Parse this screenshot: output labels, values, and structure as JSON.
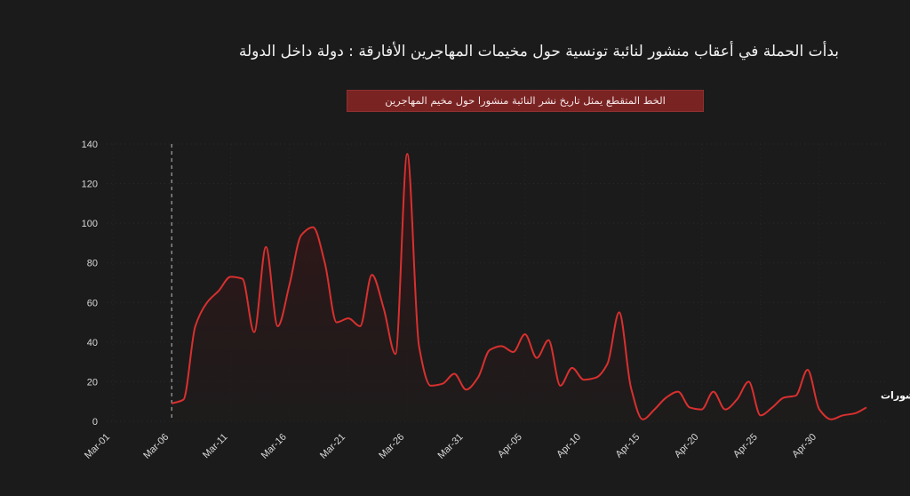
{
  "chart_data": {
    "type": "area",
    "title": "بدأت الحملة في أعقاب منشور لنائبة تونسية حول مخيمات المهاجرين الأفارقة : دولة داخل الدولة",
    "annotation_banner": "الخط المتقطع يمثل تاريخ نشر النائبة منشورا حول مخيم المهاجرين",
    "xlabel": "",
    "ylabel": "",
    "ylim": [
      0,
      140
    ],
    "y_ticks": [
      0,
      20,
      40,
      60,
      80,
      100,
      120,
      140
    ],
    "x_ticks": [
      "Mar-01",
      "Mar-06",
      "Mar-11",
      "Mar-16",
      "Mar-21",
      "Mar-26",
      "Mar-31",
      "Apr-05",
      "Apr-10",
      "Apr-15",
      "Apr-20",
      "Apr-25",
      "Apr-30"
    ],
    "x_start": "Mar-01",
    "reference_line": {
      "date": "Mar-06",
      "style": "dashed"
    },
    "grid": true,
    "colors": {
      "line": "#d8302f",
      "fill": "#5a1214",
      "background": "#1b1b1b",
      "banner": "#7a2323"
    },
    "series": [
      {
        "name": "عدد المنشورات",
        "dates": [
          "Mar-06",
          "Mar-07",
          "Mar-08",
          "Mar-09",
          "Mar-10",
          "Mar-11",
          "Mar-12",
          "Mar-13",
          "Mar-14",
          "Mar-15",
          "Mar-16",
          "Mar-17",
          "Mar-18",
          "Mar-19",
          "Mar-20",
          "Mar-21",
          "Mar-22",
          "Mar-23",
          "Mar-24",
          "Mar-25",
          "Mar-26",
          "Mar-27",
          "Mar-28",
          "Mar-29",
          "Mar-30",
          "Mar-31",
          "Apr-01",
          "Apr-02",
          "Apr-03",
          "Apr-04",
          "Apr-05",
          "Apr-06",
          "Apr-07",
          "Apr-08",
          "Apr-09",
          "Apr-10",
          "Apr-11",
          "Apr-12",
          "Apr-13",
          "Apr-14",
          "Apr-15",
          "Apr-16",
          "Apr-17",
          "Apr-18",
          "Apr-19",
          "Apr-20",
          "Apr-21",
          "Apr-22",
          "Apr-23",
          "Apr-24",
          "Apr-25",
          "Apr-26",
          "Apr-27",
          "Apr-28",
          "Apr-29",
          "Apr-30",
          "May-01",
          "May-02",
          "May-03",
          "May-04"
        ],
        "values": [
          9,
          11,
          48,
          60,
          66,
          73,
          72,
          45,
          88,
          48,
          69,
          94,
          98,
          80,
          50,
          52,
          48,
          74,
          57,
          34,
          135,
          38,
          18,
          19,
          24,
          16,
          22,
          36,
          38,
          35,
          44,
          32,
          41,
          18,
          27,
          21,
          22,
          29,
          55,
          17,
          1,
          6,
          12,
          15,
          7,
          6,
          15,
          6,
          11,
          20,
          3,
          7,
          12,
          13,
          26,
          6,
          1,
          3,
          4,
          7
        ]
      }
    ]
  }
}
